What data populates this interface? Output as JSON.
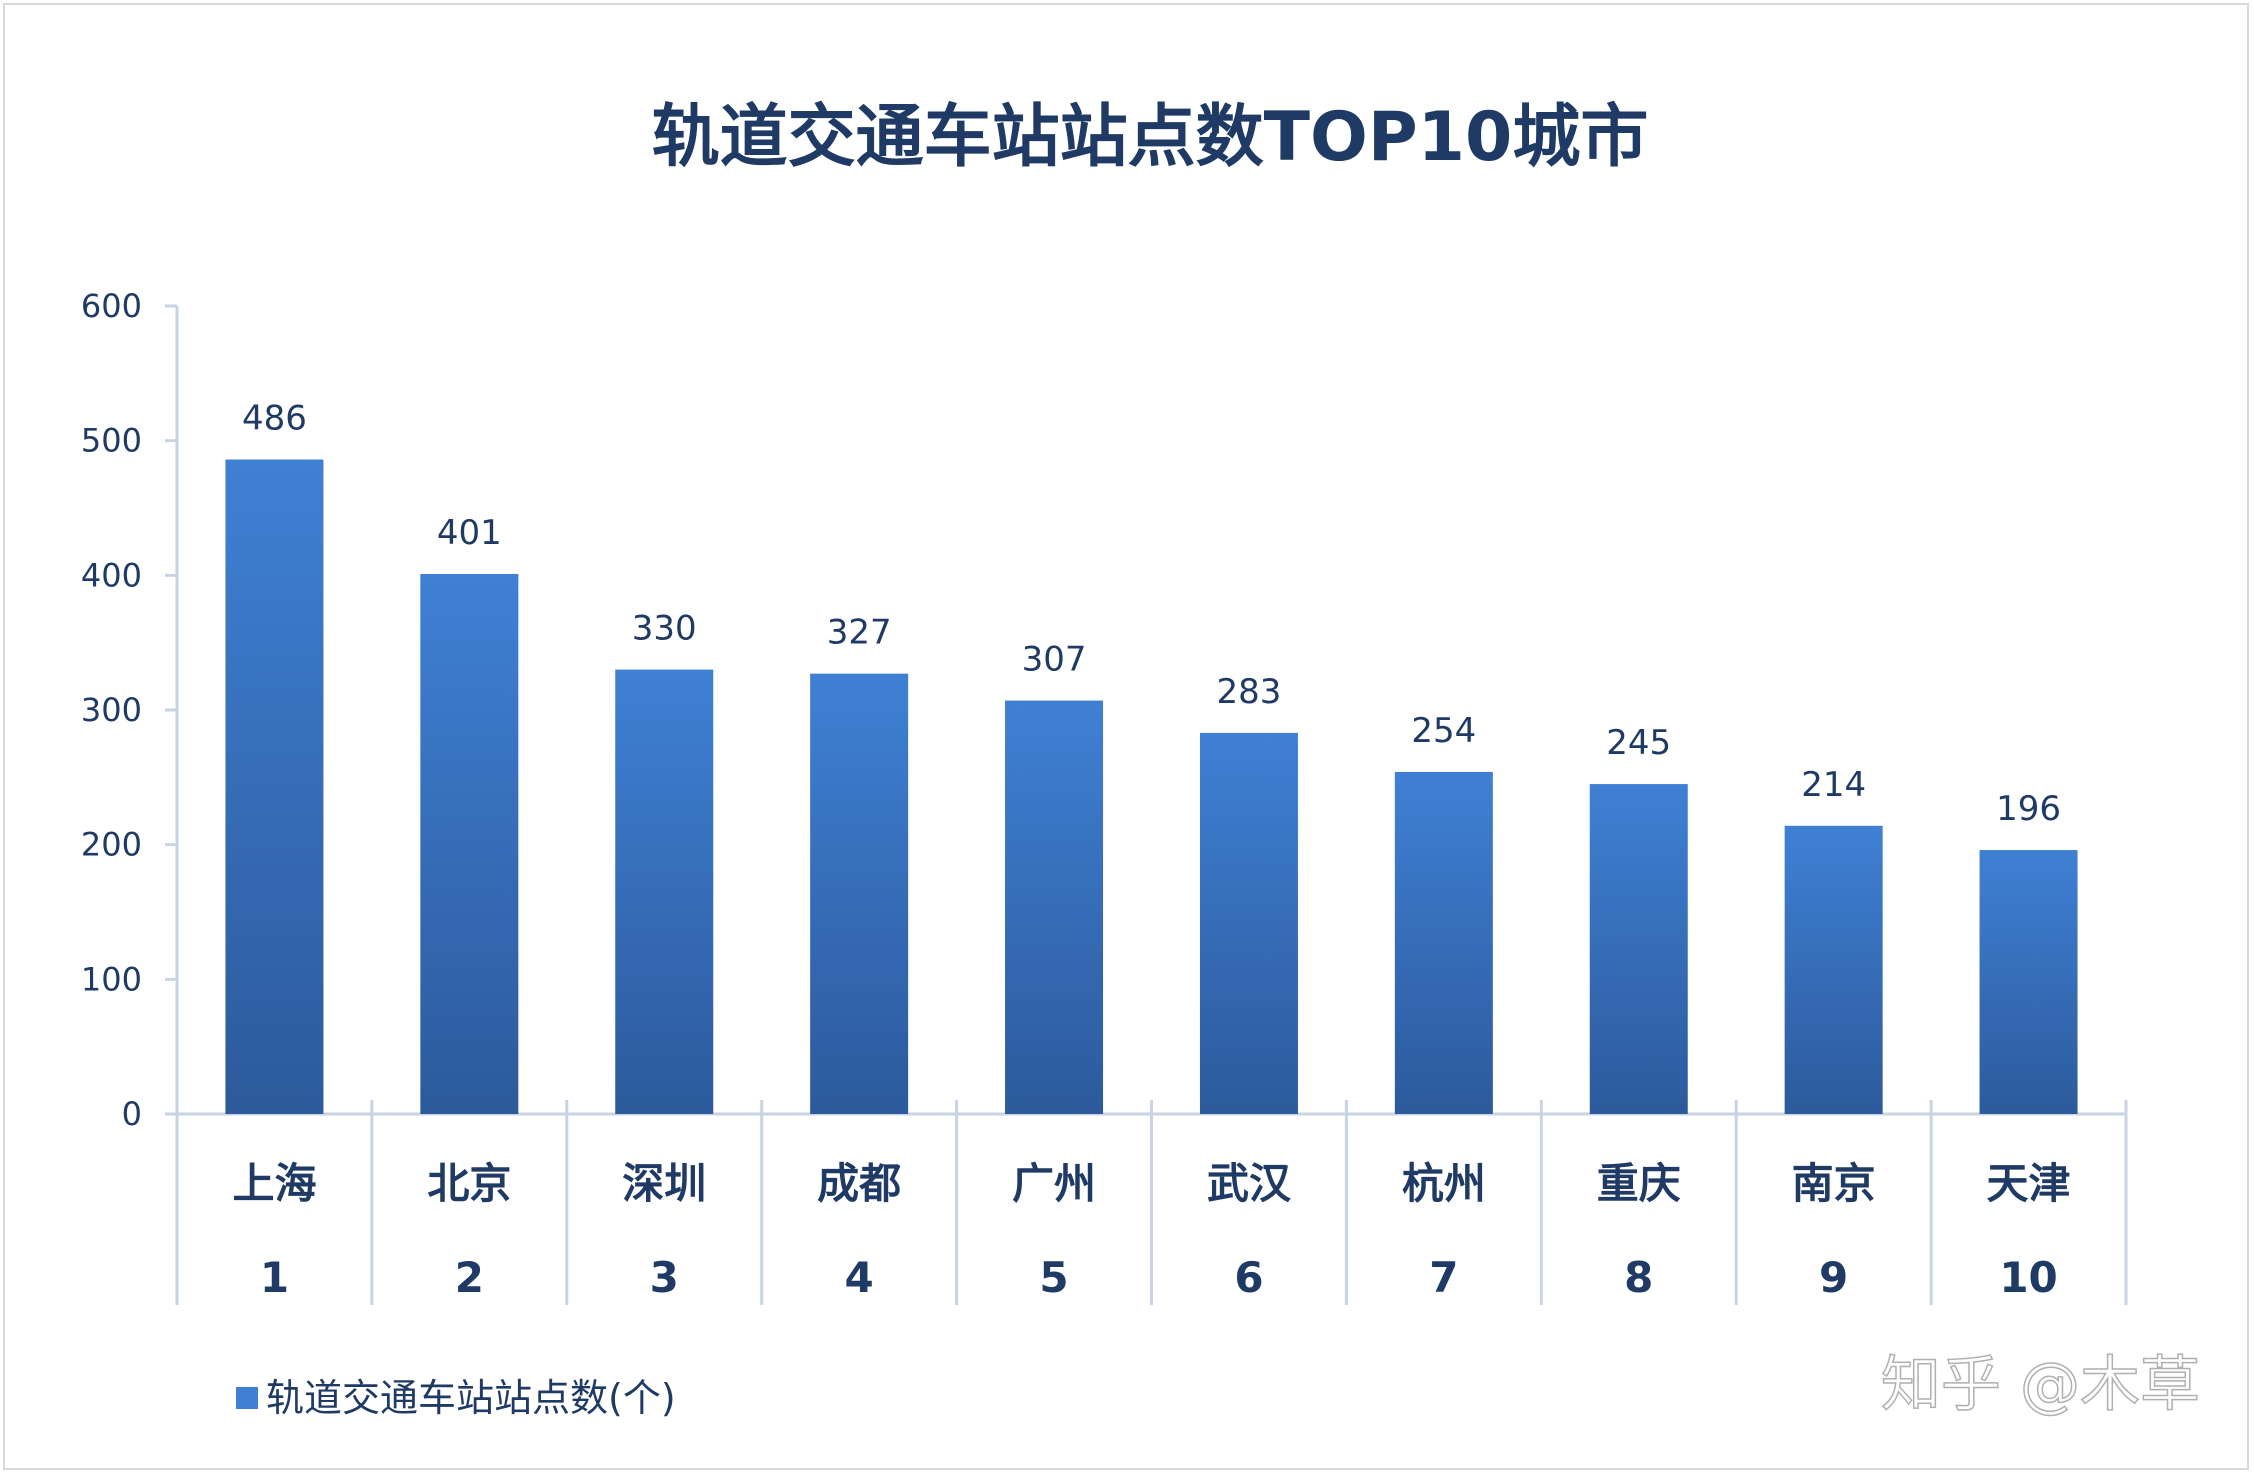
{
  "chart_data": {
    "type": "bar",
    "title": "轨道交通车站站点数TOP10城市",
    "categories": [
      "上海",
      "北京",
      "深圳",
      "成都",
      "广州",
      "武汉",
      "杭州",
      "重庆",
      "南京",
      "天津"
    ],
    "ranks": [
      "1",
      "2",
      "3",
      "4",
      "5",
      "6",
      "7",
      "8",
      "9",
      "10"
    ],
    "series": [
      {
        "name": "轨道交通车站站点数(个)",
        "values": [
          486,
          401,
          330,
          327,
          307,
          283,
          254,
          245,
          214,
          196
        ]
      }
    ],
    "ylim": [
      0,
      600
    ],
    "yticks": [
      0,
      100,
      200,
      300,
      400,
      500,
      600
    ],
    "ytick_labels": [
      "0",
      "100",
      "200",
      "300",
      "400",
      "500",
      "600"
    ],
    "data_labels": [
      "486",
      "401",
      "330",
      "327",
      "307",
      "283",
      "254",
      "245",
      "214",
      "196"
    ],
    "legend_position": "bottom-left",
    "grid": false,
    "colors": {
      "bar_top": "#3f80d4",
      "bar_bottom": "#2c5a9c",
      "axis": "#c9d3e3",
      "text": "#1f3a64"
    }
  },
  "watermark": "知乎 @木草"
}
